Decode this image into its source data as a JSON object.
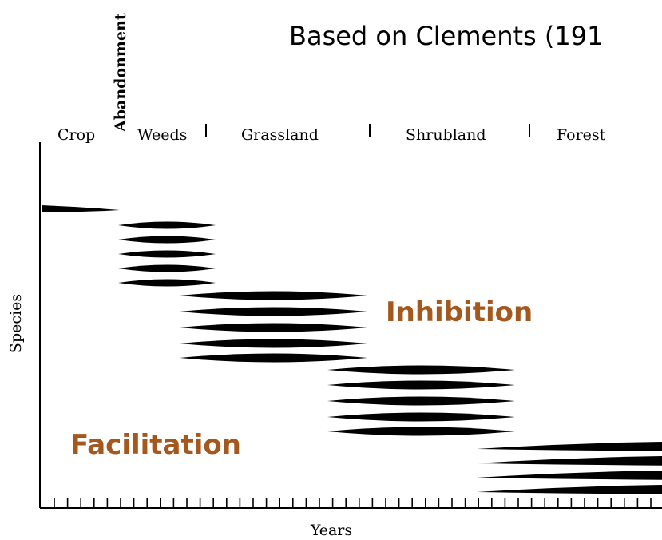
{
  "title": "Based on Clements (191",
  "stages": [
    "Crop",
    "Abandonment",
    "Weeds",
    "Grassland",
    "Shrubland",
    "Forest"
  ],
  "axis": {
    "y_label": "Species",
    "x_label": "Years"
  },
  "annotations": {
    "inhibition": "Inhibition",
    "facilitation": "Facilitation"
  }
}
